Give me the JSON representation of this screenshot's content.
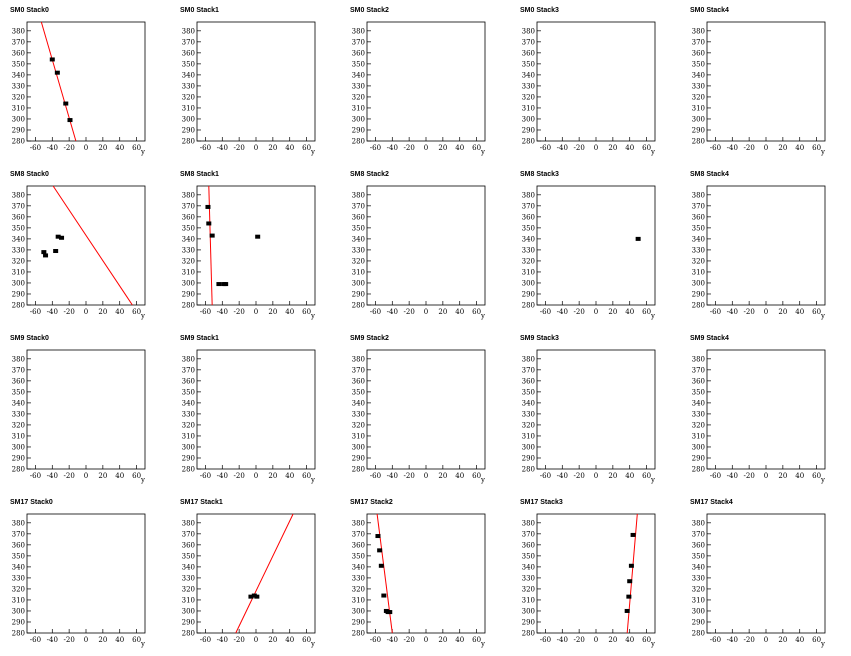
{
  "chart_data": [
    {
      "type": "scatter",
      "title": "SM0 Stack0",
      "xlabel": "y",
      "xlim": [
        -70,
        70
      ],
      "ylim": [
        280,
        388
      ],
      "xticks": [
        -60,
        -40,
        -20,
        0,
        20,
        40,
        60
      ],
      "yticks": [
        280,
        290,
        300,
        310,
        320,
        330,
        340,
        350,
        360,
        370,
        380
      ],
      "x": [
        -40,
        -34,
        -24,
        -19
      ],
      "values": [
        354,
        342,
        314,
        299
      ],
      "color": "#000000",
      "fit": {
        "x": [
          -53,
          -12
        ],
        "values": [
          388,
          280
        ],
        "color": "#ff0000"
      }
    },
    {
      "type": "scatter",
      "title": "SM0 Stack1",
      "xlabel": "y",
      "xlim": [
        -70,
        70
      ],
      "ylim": [
        280,
        388
      ],
      "xticks": [
        -60,
        -40,
        -20,
        0,
        20,
        40,
        60
      ],
      "yticks": [
        280,
        290,
        300,
        310,
        320,
        330,
        340,
        350,
        360,
        370,
        380
      ],
      "x": [],
      "values": [],
      "color": "#000000"
    },
    {
      "type": "scatter",
      "title": "SM0 Stack2",
      "xlabel": "y",
      "xlim": [
        -70,
        70
      ],
      "ylim": [
        280,
        388
      ],
      "xticks": [
        -60,
        -40,
        -20,
        0,
        20,
        40,
        60
      ],
      "yticks": [
        280,
        290,
        300,
        310,
        320,
        330,
        340,
        350,
        360,
        370,
        380
      ],
      "x": [],
      "values": [],
      "color": "#000000"
    },
    {
      "type": "scatter",
      "title": "SM0 Stack3",
      "xlabel": "y",
      "xlim": [
        -70,
        70
      ],
      "ylim": [
        280,
        388
      ],
      "xticks": [
        -60,
        -40,
        -20,
        0,
        20,
        40,
        60
      ],
      "yticks": [
        280,
        290,
        300,
        310,
        320,
        330,
        340,
        350,
        360,
        370,
        380
      ],
      "x": [],
      "values": [],
      "color": "#000000"
    },
    {
      "type": "scatter",
      "title": "SM0 Stack4",
      "xlabel": "y",
      "xlim": [
        -70,
        70
      ],
      "ylim": [
        280,
        388
      ],
      "xticks": [
        -60,
        -40,
        -20,
        0,
        20,
        40,
        60
      ],
      "yticks": [
        280,
        290,
        300,
        310,
        320,
        330,
        340,
        350,
        360,
        370,
        380
      ],
      "x": [],
      "values": [],
      "color": "#000000"
    },
    {
      "type": "scatter",
      "title": "SM8 Stack0",
      "xlabel": "y",
      "xlim": [
        -70,
        70
      ],
      "ylim": [
        280,
        388
      ],
      "xticks": [
        -60,
        -40,
        -20,
        0,
        20,
        40,
        60
      ],
      "yticks": [
        280,
        290,
        300,
        310,
        320,
        330,
        340,
        350,
        360,
        370,
        380
      ],
      "x": [
        -50,
        -48,
        -36,
        -33,
        -29
      ],
      "values": [
        328,
        325,
        329,
        342,
        341
      ],
      "color": "#000000",
      "fit": {
        "x": [
          -39,
          55
        ],
        "values": [
          388,
          280
        ],
        "color": "#ff0000"
      }
    },
    {
      "type": "scatter",
      "title": "SM8 Stack1",
      "xlabel": "y",
      "xlim": [
        -70,
        70
      ],
      "ylim": [
        280,
        388
      ],
      "xticks": [
        -60,
        -40,
        -20,
        0,
        20,
        40,
        60
      ],
      "yticks": [
        280,
        290,
        300,
        310,
        320,
        330,
        340,
        350,
        360,
        370,
        380
      ],
      "x": [
        -57,
        -56,
        -52,
        -44,
        -38,
        -36,
        2
      ],
      "values": [
        369,
        354,
        343,
        299,
        299,
        299,
        342
      ],
      "color": "#000000",
      "fit": {
        "x": [
          -56,
          -52
        ],
        "values": [
          388,
          280
        ],
        "color": "#ff0000"
      }
    },
    {
      "type": "scatter",
      "title": "SM8 Stack2",
      "xlabel": "y",
      "xlim": [
        -70,
        70
      ],
      "ylim": [
        280,
        388
      ],
      "xticks": [
        -60,
        -40,
        -20,
        0,
        20,
        40,
        60
      ],
      "yticks": [
        280,
        290,
        300,
        310,
        320,
        330,
        340,
        350,
        360,
        370,
        380
      ],
      "x": [],
      "values": [],
      "color": "#000000"
    },
    {
      "type": "scatter",
      "title": "SM8 Stack3",
      "xlabel": "y",
      "xlim": [
        -70,
        70
      ],
      "ylim": [
        280,
        388
      ],
      "xticks": [
        -60,
        -40,
        -20,
        0,
        20,
        40,
        60
      ],
      "yticks": [
        280,
        290,
        300,
        310,
        320,
        330,
        340,
        350,
        360,
        370,
        380
      ],
      "x": [
        50
      ],
      "values": [
        340
      ],
      "color": "#000000"
    },
    {
      "type": "scatter",
      "title": "SM8 Stack4",
      "xlabel": "y",
      "xlim": [
        -70,
        70
      ],
      "ylim": [
        280,
        388
      ],
      "xticks": [
        -60,
        -40,
        -20,
        0,
        20,
        40,
        60
      ],
      "yticks": [
        280,
        290,
        300,
        310,
        320,
        330,
        340,
        350,
        360,
        370,
        380
      ],
      "x": [],
      "values": [],
      "color": "#000000"
    },
    {
      "type": "scatter",
      "title": "SM9 Stack0",
      "xlabel": "y",
      "xlim": [
        -70,
        70
      ],
      "ylim": [
        280,
        388
      ],
      "xticks": [
        -60,
        -40,
        -20,
        0,
        20,
        40,
        60
      ],
      "yticks": [
        280,
        290,
        300,
        310,
        320,
        330,
        340,
        350,
        360,
        370,
        380
      ],
      "x": [],
      "values": [],
      "color": "#000000"
    },
    {
      "type": "scatter",
      "title": "SM9 Stack1",
      "xlabel": "y",
      "xlim": [
        -70,
        70
      ],
      "ylim": [
        280,
        388
      ],
      "xticks": [
        -60,
        -40,
        -20,
        0,
        20,
        40,
        60
      ],
      "yticks": [
        280,
        290,
        300,
        310,
        320,
        330,
        340,
        350,
        360,
        370,
        380
      ],
      "x": [],
      "values": [],
      "color": "#000000"
    },
    {
      "type": "scatter",
      "title": "SM9 Stack2",
      "xlabel": "y",
      "xlim": [
        -70,
        70
      ],
      "ylim": [
        280,
        388
      ],
      "xticks": [
        -60,
        -40,
        -20,
        0,
        20,
        40,
        60
      ],
      "yticks": [
        280,
        290,
        300,
        310,
        320,
        330,
        340,
        350,
        360,
        370,
        380
      ],
      "x": [],
      "values": [],
      "color": "#000000"
    },
    {
      "type": "scatter",
      "title": "SM9 Stack3",
      "xlabel": "y",
      "xlim": [
        -70,
        70
      ],
      "ylim": [
        280,
        388
      ],
      "xticks": [
        -60,
        -40,
        -20,
        0,
        20,
        40,
        60
      ],
      "yticks": [
        280,
        290,
        300,
        310,
        320,
        330,
        340,
        350,
        360,
        370,
        380
      ],
      "x": [],
      "values": [],
      "color": "#000000"
    },
    {
      "type": "scatter",
      "title": "SM9 Stack4",
      "xlabel": "y",
      "xlim": [
        -70,
        70
      ],
      "ylim": [
        280,
        388
      ],
      "xticks": [
        -60,
        -40,
        -20,
        0,
        20,
        40,
        60
      ],
      "yticks": [
        280,
        290,
        300,
        310,
        320,
        330,
        340,
        350,
        360,
        370,
        380
      ],
      "x": [],
      "values": [],
      "color": "#000000"
    },
    {
      "type": "scatter",
      "title": "SM17 Stack0",
      "xlabel": "y",
      "xlim": [
        -70,
        70
      ],
      "ylim": [
        280,
        388
      ],
      "xticks": [
        -60,
        -40,
        -20,
        0,
        20,
        40,
        60
      ],
      "yticks": [
        280,
        290,
        300,
        310,
        320,
        330,
        340,
        350,
        360,
        370,
        380
      ],
      "x": [],
      "values": [],
      "color": "#000000"
    },
    {
      "type": "scatter",
      "title": "SM17 Stack1",
      "xlabel": "y",
      "xlim": [
        -70,
        70
      ],
      "ylim": [
        280,
        388
      ],
      "xticks": [
        -60,
        -40,
        -20,
        0,
        20,
        40,
        60
      ],
      "yticks": [
        280,
        290,
        300,
        310,
        320,
        330,
        340,
        350,
        360,
        370,
        380
      ],
      "x": [
        -6,
        -2,
        1
      ],
      "values": [
        313,
        314,
        313
      ],
      "color": "#000000",
      "fit": {
        "x": [
          -24,
          44
        ],
        "values": [
          280,
          388
        ],
        "color": "#ff0000"
      }
    },
    {
      "type": "scatter",
      "title": "SM17 Stack2",
      "xlabel": "y",
      "xlim": [
        -70,
        70
      ],
      "ylim": [
        280,
        388
      ],
      "xticks": [
        -60,
        -40,
        -20,
        0,
        20,
        40,
        60
      ],
      "yticks": [
        280,
        290,
        300,
        310,
        320,
        330,
        340,
        350,
        360,
        370,
        380
      ],
      "x": [
        -57,
        -55,
        -53,
        -50,
        -47,
        -45,
        -43
      ],
      "values": [
        368,
        355,
        341,
        314,
        300,
        299,
        299
      ],
      "color": "#000000",
      "fit": {
        "x": [
          -58,
          -40
        ],
        "values": [
          388,
          280
        ],
        "color": "#ff0000"
      }
    },
    {
      "type": "scatter",
      "title": "SM17 Stack3",
      "xlabel": "y",
      "xlim": [
        -70,
        70
      ],
      "ylim": [
        280,
        388
      ],
      "xticks": [
        -60,
        -40,
        -20,
        0,
        20,
        40,
        60
      ],
      "yticks": [
        280,
        290,
        300,
        310,
        320,
        330,
        340,
        350,
        360,
        370,
        380
      ],
      "x": [
        44,
        42,
        40,
        39,
        37
      ],
      "values": [
        369,
        341,
        327,
        313,
        300
      ],
      "color": "#000000",
      "fit": {
        "x": [
          49,
          37
        ],
        "values": [
          388,
          280
        ],
        "color": "#ff0000"
      }
    },
    {
      "type": "scatter",
      "title": "SM17 Stack4",
      "xlabel": "y",
      "xlim": [
        -70,
        70
      ],
      "ylim": [
        280,
        388
      ],
      "xticks": [
        -60,
        -40,
        -20,
        0,
        20,
        40,
        60
      ],
      "yticks": [
        280,
        290,
        300,
        310,
        320,
        330,
        340,
        350,
        360,
        370,
        380
      ],
      "x": [],
      "values": [],
      "color": "#000000"
    }
  ]
}
